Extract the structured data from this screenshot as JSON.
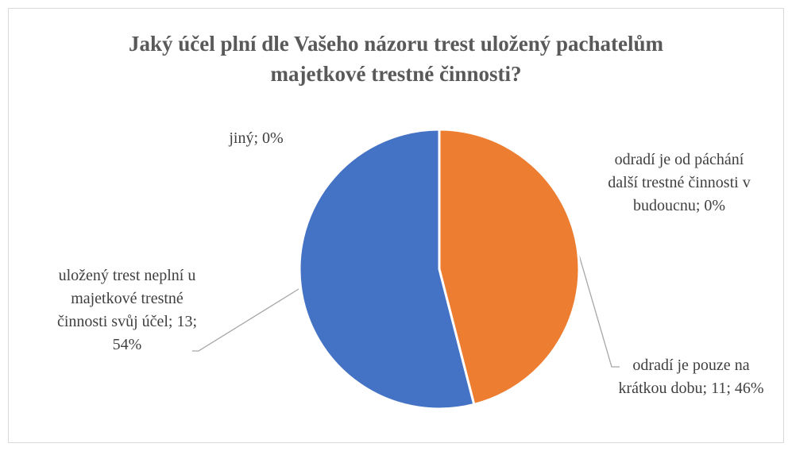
{
  "chart_data": {
    "type": "pie",
    "title": "Jaký účel plní dle Vašeho názoru trest uložený pachatelům majetkové trestné činnosti?",
    "categories": [
      "odradí je od páchání další trestné činnosti v budoucnu",
      "odradí je pouze na krátkou dobu",
      "uložený trest neplní u majetkové trestné činnosti svůj účel",
      "jiný"
    ],
    "values": [
      0,
      46,
      54,
      0
    ],
    "value_labels": [
      "odradí je od páchání další trestné činnosti v budoucnu; 0%",
      "odradí je pouze na krátkou dobu; 11; 46%",
      "uložený trest neplní u majetkové trestné činnosti svůj účel; 13; 54%",
      "jiný; 0%"
    ],
    "colors": [
      "#A5A5A5",
      "#ED7D31",
      "#4472C4",
      "#FFC000"
    ]
  }
}
